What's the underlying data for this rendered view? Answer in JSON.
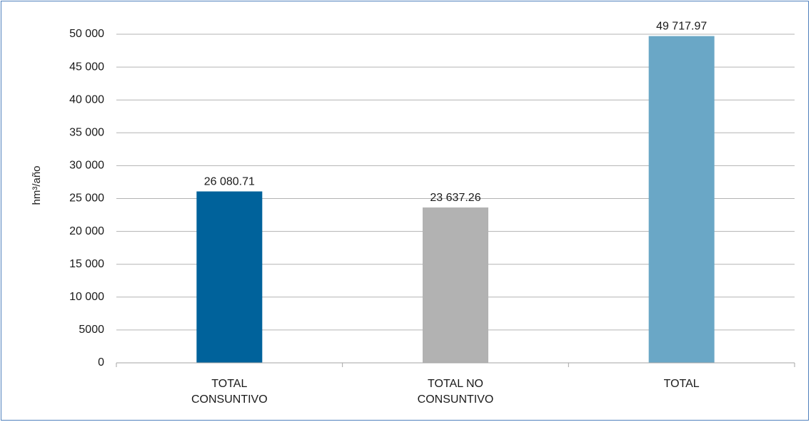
{
  "chart_data": {
    "type": "bar",
    "title": "",
    "xlabel": "",
    "ylabel": "hm³/año",
    "categories": [
      [
        "TOTAL",
        "CONSUNTIVO"
      ],
      [
        "TOTAL NO",
        "CONSUNTIVO"
      ],
      [
        "TOTAL"
      ]
    ],
    "values": [
      26080.71,
      23637.26,
      49717.97
    ],
    "value_labels": [
      "26 080.71",
      "23 637.26",
      "49 717.97"
    ],
    "bar_colors": [
      "#00629b",
      "#b2b2b2",
      "#6aa7c6"
    ],
    "ylim": [
      0,
      50000
    ],
    "yticks": [
      0,
      5000,
      10000,
      15000,
      20000,
      25000,
      30000,
      35000,
      40000,
      45000,
      50000
    ],
    "ytick_labels": [
      "0",
      "5000",
      "10 000",
      "15 000",
      "20 000",
      "25 000",
      "30 000",
      "35 000",
      "40 000",
      "45 000",
      "50 000"
    ],
    "grid": true,
    "legend": "none"
  },
  "colors": {
    "frame_border": "#4f81bd",
    "gridline": "#b3b3b3",
    "axis": "#a6a6a6"
  }
}
